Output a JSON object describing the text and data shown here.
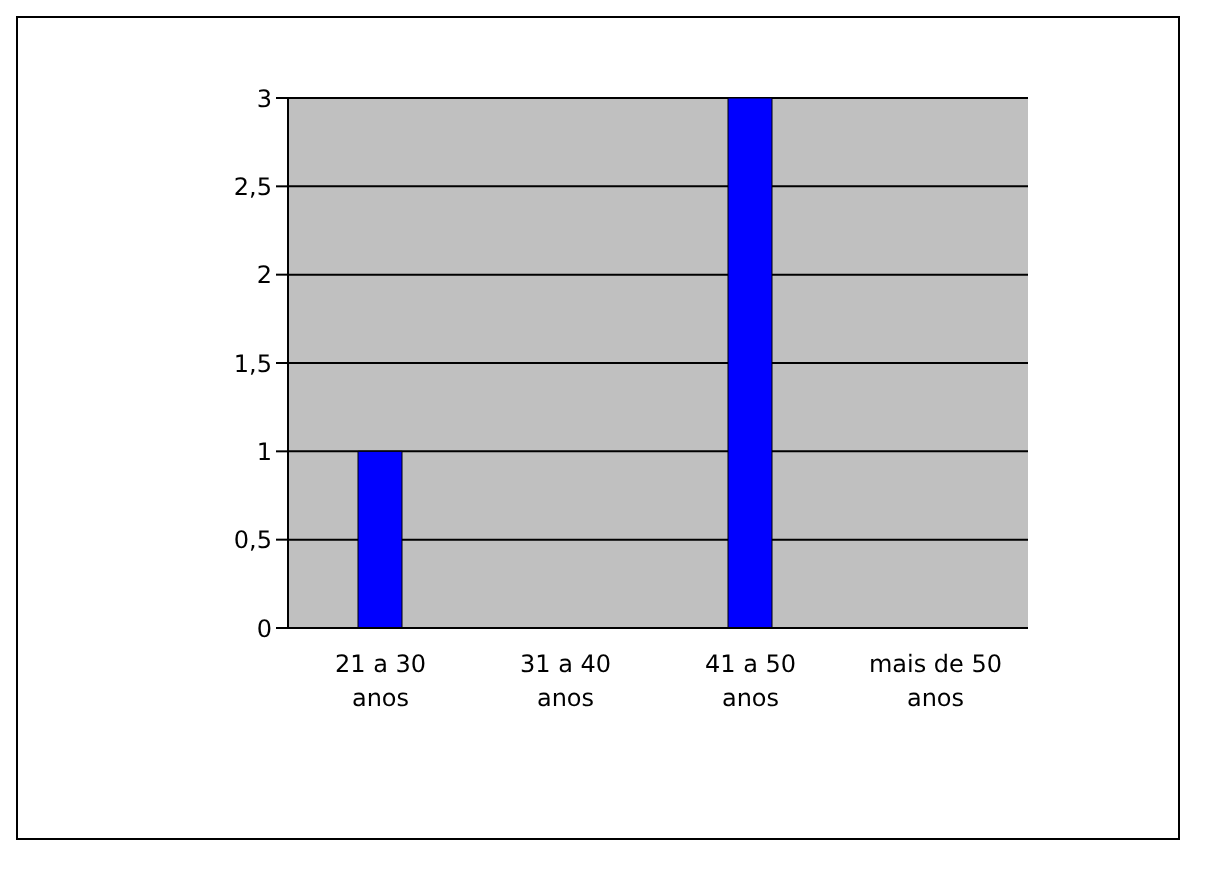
{
  "chart_data": {
    "type": "bar",
    "categories": [
      "21 a 30 anos",
      "31 a 40 anos",
      "41 a 50 anos",
      "mais de 50 anos"
    ],
    "values": [
      1,
      0,
      3,
      0
    ],
    "color": "#0000ff",
    "ylim": [
      0,
      3
    ],
    "yticks": [
      0,
      {
        "value": 0.5,
        "label": "0,5"
      },
      1,
      {
        "value": 1.5,
        "label": "1,5"
      },
      2,
      {
        "value": 2.5,
        "label": "2,5"
      },
      3
    ],
    "grid": "y",
    "legend": false
  }
}
